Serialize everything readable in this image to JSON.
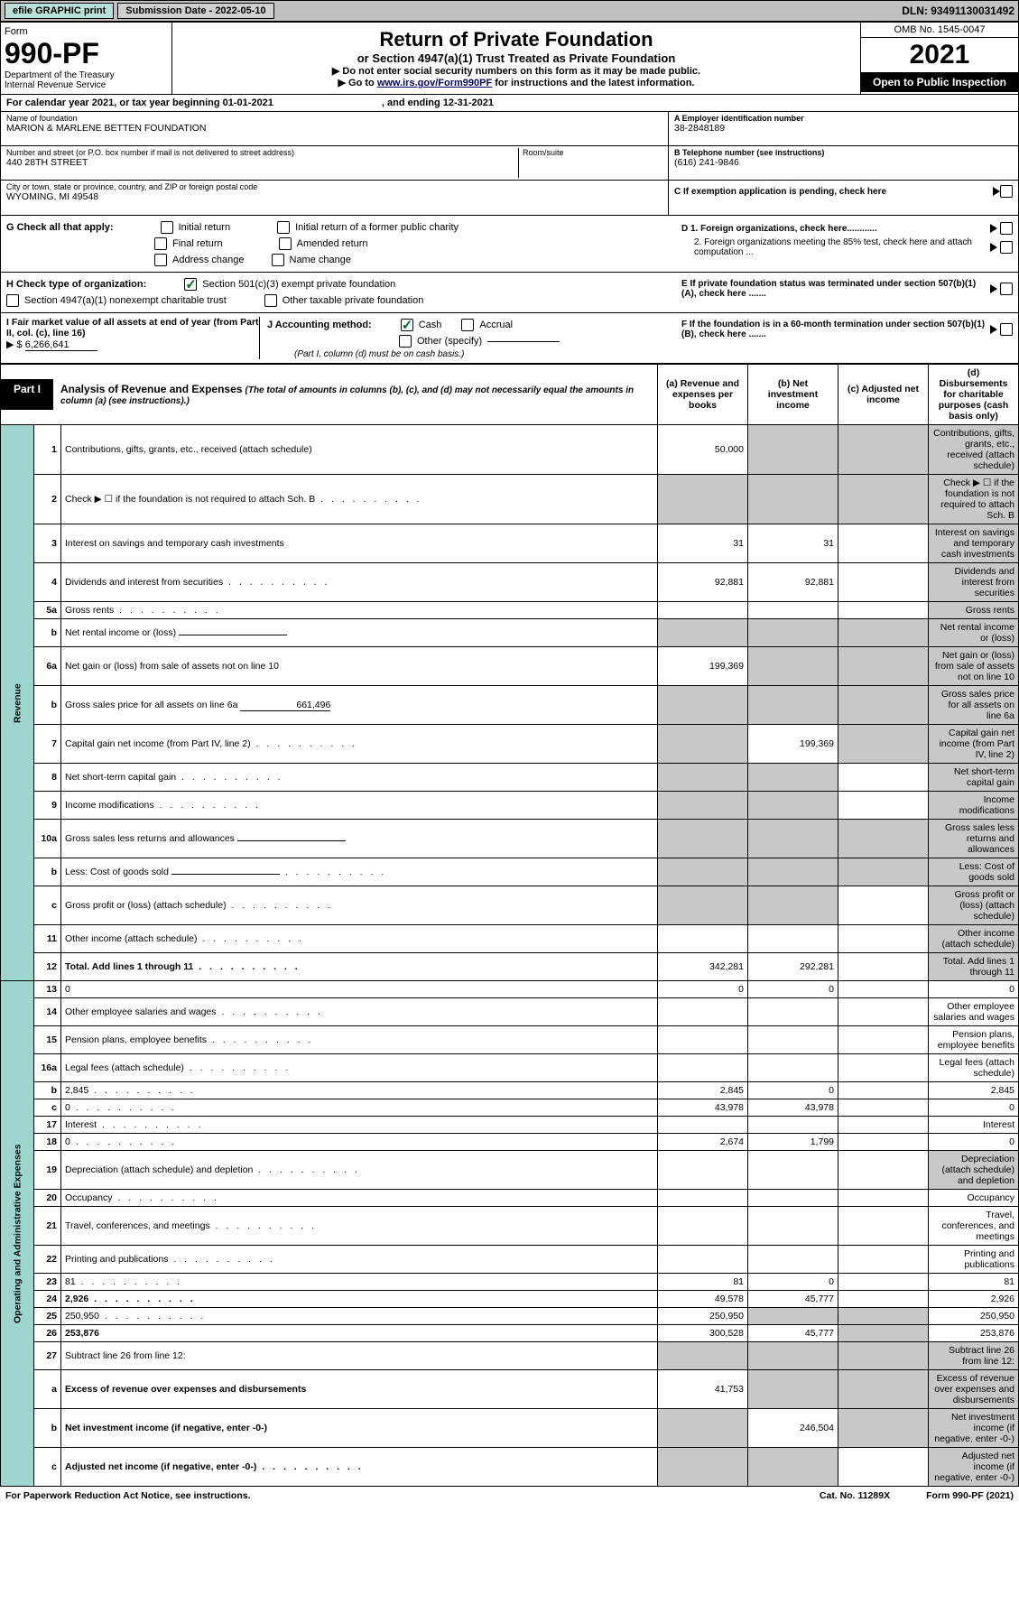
{
  "top_bar": {
    "efile": "efile GRAPHIC print",
    "submission": "Submission Date - 2022-05-10",
    "dln": "DLN: 93491130031492"
  },
  "header": {
    "form_word": "Form",
    "form_num": "990-PF",
    "dept": "Department of the Treasury",
    "irs": "Internal Revenue Service",
    "title": "Return of Private Foundation",
    "subtitle": "or Section 4947(a)(1) Trust Treated as Private Foundation",
    "note1": "▶ Do not enter social security numbers on this form as it may be made public.",
    "note2_pre": "▶ Go to ",
    "note2_link": "www.irs.gov/Form990PF",
    "note2_post": " for instructions and the latest information.",
    "omb": "OMB No. 1545-0047",
    "year": "2021",
    "open": "Open to Public Inspection"
  },
  "cal_year": {
    "pre": "For calendar year 2021, or tax year beginning 01-01-2021",
    "end": ", and ending 12-31-2021"
  },
  "info": {
    "name_label": "Name of foundation",
    "name": "MARION & MARLENE BETTEN FOUNDATION",
    "addr_label": "Number and street (or P.O. box number if mail is not delivered to street address)",
    "addr": "440 28TH STREET",
    "room_label": "Room/suite",
    "city_label": "City or town, state or province, country, and ZIP or foreign postal code",
    "city": "WYOMING, MI  49548",
    "a_label": "A Employer identification number",
    "a_val": "38-2848189",
    "b_label": "B Telephone number (see instructions)",
    "b_val": "(616) 241-9846",
    "c_label": "C If exemption application is pending, check here"
  },
  "checks": {
    "g_label": "G Check all that apply:",
    "g_opts": [
      "Initial return",
      "Final return",
      "Address change",
      "Initial return of a former public charity",
      "Amended return",
      "Name change"
    ],
    "h_label": "H Check type of organization:",
    "h_opt1": "Section 501(c)(3) exempt private foundation",
    "h_opt2": "Section 4947(a)(1) nonexempt charitable trust",
    "h_opt3": "Other taxable private foundation",
    "i_label": "I Fair market value of all assets at end of year (from Part II, col. (c), line 16)",
    "i_val": "6,266,641",
    "j_label": "J Accounting method:",
    "j_opt1": "Cash",
    "j_opt2": "Accrual",
    "j_opt3": "Other (specify)",
    "j_note": "(Part I, column (d) must be on cash basis.)",
    "d1": "D 1. Foreign organizations, check here............",
    "d2": "2. Foreign organizations meeting the 85% test, check here and attach computation ...",
    "e": "E  If private foundation status was terminated under section 507(b)(1)(A), check here .......",
    "f": "F  If the foundation is in a 60-month termination under section 507(b)(1)(B), check here .......",
    "i_prefix": "▶ $ "
  },
  "part1": {
    "tab": "Part I",
    "title": "Analysis of Revenue and Expenses",
    "note": "(The total of amounts in columns (b), (c), and (d) may not necessarily equal the amounts in column (a) (see instructions).)",
    "col_a": "(a)   Revenue and expenses per books",
    "col_b": "(b)   Net investment income",
    "col_c": "(c)   Adjusted net income",
    "col_d": "(d)   Disbursements for charitable purposes (cash basis only)"
  },
  "side_labels": {
    "rev": "Revenue",
    "exp": "Operating and Administrative Expenses"
  },
  "rows": [
    {
      "n": "1",
      "d": "Contributions, gifts, grants, etc., received (attach schedule)",
      "a": "50,000",
      "b_shade": true,
      "c_shade": true,
      "d_shade": true
    },
    {
      "n": "2",
      "d": "Check ▶ ☐ if the foundation is not required to attach Sch. B",
      "dots": true,
      "a_shade": true,
      "b_shade": true,
      "c_shade": true,
      "d_shade": true,
      "not_bold": true
    },
    {
      "n": "3",
      "d": "Interest on savings and temporary cash investments",
      "a": "31",
      "b": "31",
      "d_shade": true
    },
    {
      "n": "4",
      "d": "Dividends and interest from securities",
      "dots": true,
      "a": "92,881",
      "b": "92,881",
      "d_shade": true
    },
    {
      "n": "5a",
      "d": "Gross rents",
      "dots": true,
      "d_shade": true
    },
    {
      "n": "b",
      "d": "Net rental income or (loss)",
      "inline": true,
      "a_shade": true,
      "b_shade": true,
      "c_shade": true,
      "d_shade": true
    },
    {
      "n": "6a",
      "d": "Net gain or (loss) from sale of assets not on line 10",
      "a": "199,369",
      "b_shade": true,
      "c_shade": true,
      "d_shade": true
    },
    {
      "n": "b",
      "d": "Gross sales price for all assets on line 6a",
      "inline_val": "661,496",
      "a_shade": true,
      "b_shade": true,
      "c_shade": true,
      "d_shade": true
    },
    {
      "n": "7",
      "d": "Capital gain net income (from Part IV, line 2)",
      "dots": true,
      "a_shade": true,
      "b": "199,369",
      "c_shade": true,
      "d_shade": true
    },
    {
      "n": "8",
      "d": "Net short-term capital gain",
      "dots": true,
      "a_shade": true,
      "b_shade": true,
      "d_shade": true
    },
    {
      "n": "9",
      "d": "Income modifications",
      "dots": true,
      "a_shade": true,
      "b_shade": true,
      "d_shade": true
    },
    {
      "n": "10a",
      "d": "Gross sales less returns and allowances",
      "inline": true,
      "a_shade": true,
      "b_shade": true,
      "c_shade": true,
      "d_shade": true
    },
    {
      "n": "b",
      "d": "Less: Cost of goods sold",
      "dots": true,
      "inline": true,
      "a_shade": true,
      "b_shade": true,
      "c_shade": true,
      "d_shade": true
    },
    {
      "n": "c",
      "d": "Gross profit or (loss) (attach schedule)",
      "dots": true,
      "a_shade": true,
      "b_shade": true,
      "d_shade": true
    },
    {
      "n": "11",
      "d": "Other income (attach schedule)",
      "dots": true,
      "d_shade": true
    },
    {
      "n": "12",
      "d": "Total. Add lines 1 through 11",
      "dots": true,
      "bold": true,
      "a": "342,281",
      "b": "292,281",
      "d_shade": true
    },
    {
      "n": "13",
      "d": "0",
      "a": "0",
      "b": "0"
    },
    {
      "n": "14",
      "d": "Other employee salaries and wages",
      "dots": true
    },
    {
      "n": "15",
      "d": "Pension plans, employee benefits",
      "dots": true
    },
    {
      "n": "16a",
      "d": "Legal fees (attach schedule)",
      "dots": true
    },
    {
      "n": "b",
      "d": "2,845",
      "dots": true,
      "a": "2,845",
      "b": "0"
    },
    {
      "n": "c",
      "d": "0",
      "dots": true,
      "a": "43,978",
      "b": "43,978"
    },
    {
      "n": "17",
      "d": "Interest",
      "dots": true
    },
    {
      "n": "18",
      "d": "0",
      "dots": true,
      "a": "2,674",
      "b": "1,799"
    },
    {
      "n": "19",
      "d": "Depreciation (attach schedule) and depletion",
      "dots": true,
      "d_shade": true
    },
    {
      "n": "20",
      "d": "Occupancy",
      "dots": true
    },
    {
      "n": "21",
      "d": "Travel, conferences, and meetings",
      "dots": true
    },
    {
      "n": "22",
      "d": "Printing and publications",
      "dots": true
    },
    {
      "n": "23",
      "d": "81",
      "dots": true,
      "a": "81",
      "b": "0"
    },
    {
      "n": "24",
      "d": "2,926",
      "dots": true,
      "bold": true,
      "a": "49,578",
      "b": "45,777"
    },
    {
      "n": "25",
      "d": "250,950",
      "dots": true,
      "a": "250,950",
      "b_shade": true,
      "c_shade": true
    },
    {
      "n": "26",
      "d": "253,876",
      "bold": true,
      "a": "300,528",
      "b": "45,777",
      "c_shade": true
    },
    {
      "n": "27",
      "d": "Subtract line 26 from line 12:",
      "a_shade": true,
      "b_shade": true,
      "c_shade": true,
      "d_shade": true
    },
    {
      "n": "a",
      "d": "Excess of revenue over expenses and disbursements",
      "bold": true,
      "a": "41,753",
      "b_shade": true,
      "c_shade": true,
      "d_shade": true
    },
    {
      "n": "b",
      "d": "Net investment income (if negative, enter -0-)",
      "bold": true,
      "a_shade": true,
      "b": "246,504",
      "c_shade": true,
      "d_shade": true
    },
    {
      "n": "c",
      "d": "Adjusted net income (if negative, enter -0-)",
      "dots": true,
      "bold": true,
      "a_shade": true,
      "b_shade": true,
      "d_shade": true
    }
  ],
  "footer": {
    "left": "For Paperwork Reduction Act Notice, see instructions.",
    "mid": "Cat. No. 11289X",
    "right": "Form 990-PF (2021)"
  },
  "colors": {
    "topbar_bg": "#c0c0c0",
    "btn_bg": "#b9e0d9",
    "side_bg": "#9dd6cc",
    "shade": "#c8c8c8"
  }
}
